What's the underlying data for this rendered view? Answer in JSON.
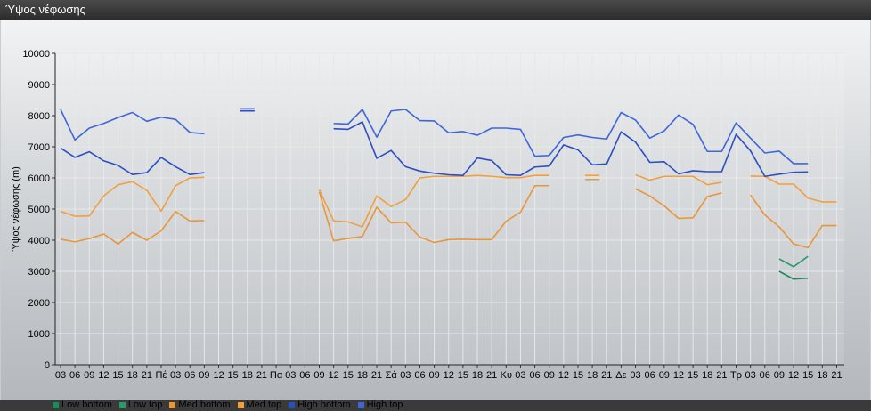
{
  "window": {
    "title": "Ύψος νέφωσης"
  },
  "chart_data": {
    "type": "line",
    "ylabel": "Ύψος νέφωσης (m)",
    "ylim": [
      0,
      10000
    ],
    "yticks": [
      "0",
      "1000",
      "2000",
      "3000",
      "4000",
      "5000",
      "6000",
      "7000",
      "8000",
      "9000",
      "10000"
    ],
    "grid": true,
    "legend_position": "bottom-left",
    "categories": [
      "03",
      "06",
      "09",
      "12",
      "15",
      "18",
      "21",
      "Πέ",
      "03",
      "06",
      "09",
      "12",
      "15",
      "18",
      "21",
      "Πα",
      "03",
      "06",
      "09",
      "12",
      "15",
      "18",
      "21",
      "Σά",
      "03",
      "06",
      "09",
      "12",
      "15",
      "18",
      "21",
      "Κυ",
      "03",
      "06",
      "09",
      "12",
      "15",
      "18",
      "21",
      "Δε",
      "03",
      "06",
      "09",
      "12",
      "15",
      "18",
      "21",
      "Τρ",
      "03",
      "06",
      "09",
      "12",
      "15",
      "18",
      "21"
    ],
    "series": [
      {
        "name": "Low bottom",
        "color": "#1e8a5a",
        "values": [
          null,
          null,
          null,
          null,
          null,
          null,
          null,
          null,
          null,
          null,
          null,
          null,
          null,
          null,
          null,
          null,
          null,
          null,
          null,
          null,
          null,
          null,
          null,
          null,
          null,
          null,
          null,
          null,
          null,
          null,
          null,
          null,
          null,
          null,
          null,
          null,
          null,
          null,
          null,
          null,
          null,
          null,
          null,
          null,
          null,
          null,
          null,
          null,
          null,
          null,
          3000,
          2750,
          2780,
          null,
          null
        ]
      },
      {
        "name": "Low top",
        "color": "#2a9a6a",
        "values": [
          null,
          null,
          null,
          null,
          null,
          null,
          null,
          null,
          null,
          null,
          null,
          null,
          null,
          null,
          null,
          null,
          null,
          null,
          null,
          null,
          null,
          null,
          null,
          null,
          null,
          null,
          null,
          null,
          null,
          null,
          null,
          null,
          null,
          null,
          null,
          null,
          null,
          null,
          null,
          null,
          null,
          null,
          null,
          null,
          null,
          null,
          null,
          null,
          null,
          null,
          3400,
          3150,
          3480,
          null,
          null
        ]
      },
      {
        "name": "Med bottom",
        "color": "#e8963a",
        "values": [
          4030,
          3950,
          4050,
          4200,
          3880,
          4250,
          4000,
          4300,
          4920,
          4620,
          4630,
          null,
          null,
          8150,
          null,
          null,
          null,
          null,
          5550,
          3980,
          4060,
          4120,
          5060,
          4560,
          4580,
          4100,
          3930,
          4020,
          4030,
          4020,
          4020,
          4610,
          4900,
          5750,
          5750,
          null,
          null,
          5950,
          null,
          null,
          5650,
          5420,
          5100,
          4700,
          4720,
          5400,
          5520,
          null,
          5450,
          4810,
          4430,
          3880,
          3760,
          4470,
          4470
        ]
      },
      {
        "name": "Med top",
        "color": "#f0a040",
        "values": [
          4930,
          4770,
          4780,
          5420,
          5780,
          5880,
          5600,
          4930,
          5750,
          6000,
          6020,
          null,
          null,
          8220,
          null,
          null,
          null,
          null,
          5620,
          4620,
          4590,
          4430,
          5420,
          5080,
          5300,
          6000,
          6050,
          6050,
          6050,
          6080,
          6050,
          6010,
          6010,
          6080,
          6080,
          null,
          null,
          6080,
          null,
          null,
          6100,
          5930,
          6050,
          6050,
          6050,
          5780,
          5860,
          null,
          6060,
          6050,
          5800,
          5800,
          5350,
          5230,
          5230
        ]
      },
      {
        "name": "High bottom",
        "color": "#2b4fc0",
        "values": [
          6960,
          6660,
          6840,
          6550,
          6400,
          6110,
          6170,
          6660,
          6360,
          6110,
          6170,
          null,
          null,
          8150,
          null,
          null,
          null,
          null,
          null,
          7580,
          7560,
          7800,
          6630,
          6880,
          6360,
          6220,
          6150,
          6100,
          6080,
          6640,
          6560,
          6100,
          6080,
          6350,
          6380,
          7060,
          6900,
          6420,
          6450,
          7480,
          7150,
          6500,
          6520,
          6130,
          6230,
          6200,
          6200,
          7400,
          6870,
          6050,
          6120,
          6180,
          6190,
          null,
          null
        ]
      },
      {
        "name": "High top",
        "color": "#3e66d8",
        "values": [
          8200,
          7220,
          7600,
          7750,
          7940,
          8100,
          7820,
          7950,
          7880,
          7460,
          7420,
          null,
          null,
          8220,
          null,
          null,
          null,
          null,
          null,
          7750,
          7730,
          8200,
          7310,
          8150,
          8200,
          7840,
          7830,
          7450,
          7490,
          7370,
          7600,
          7600,
          7560,
          6700,
          6720,
          7300,
          7380,
          7300,
          7250,
          8100,
          7860,
          7280,
          7510,
          8020,
          7720,
          6850,
          6850,
          7770,
          7280,
          6800,
          6860,
          6460,
          6460,
          null,
          null
        ]
      }
    ]
  }
}
